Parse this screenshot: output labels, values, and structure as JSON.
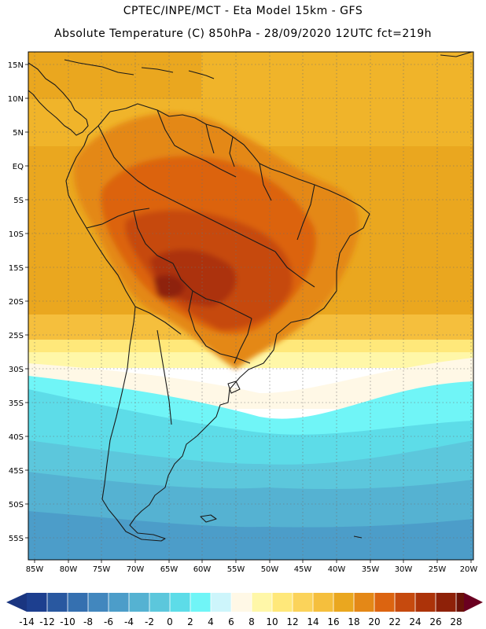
{
  "header": {
    "line1": "CPTEC/INPE/MCT -  Eta Model 15km - GFS",
    "line2": "Absolute Temperature (C) 850hPa - 28/09/2020 12UTC fct=219h"
  },
  "map": {
    "lat_labels": [
      "15N",
      "10N",
      "5N",
      "EQ",
      "5S",
      "10S",
      "15S",
      "20S",
      "25S",
      "30S",
      "35S",
      "40S",
      "45S",
      "50S",
      "55S"
    ],
    "lon_labels": [
      "85W",
      "80W",
      "75W",
      "70W",
      "65W",
      "60W",
      "55W",
      "50W",
      "45W",
      "40W",
      "35W",
      "30W",
      "25W",
      "20W"
    ],
    "lat_range": [
      -57.5,
      16.0
    ],
    "lon_range": [
      -86.0,
      -20.5
    ]
  },
  "colorbar": {
    "labels": [
      "-14",
      "-12",
      "-10",
      "-8",
      "-6",
      "-4",
      "-2",
      "0",
      "2",
      "4",
      "6",
      "8",
      "10",
      "12",
      "14",
      "16",
      "18",
      "20",
      "22",
      "24",
      "26",
      "28"
    ],
    "colors": [
      "#1d3f8f",
      "#2958a0",
      "#3570b0",
      "#4287be",
      "#4c9dc9",
      "#55b2d2",
      "#5cc7dc",
      "#5ddce8",
      "#70f5f7",
      "#cdf5fb",
      "#fff8e6",
      "#fff7a8",
      "#ffe87a",
      "#fbd35a",
      "#f5bf3d",
      "#eaa71f",
      "#e48817",
      "#dc6410",
      "#c64a0e",
      "#ac3309",
      "#8e2108",
      "#6a1208"
    ],
    "low_arrow_color": "#1a3580",
    "high_arrow_color": "#6a0020"
  },
  "colors": {
    "land_outline": "#1a1a1a",
    "grid": "#6f6f6f"
  }
}
